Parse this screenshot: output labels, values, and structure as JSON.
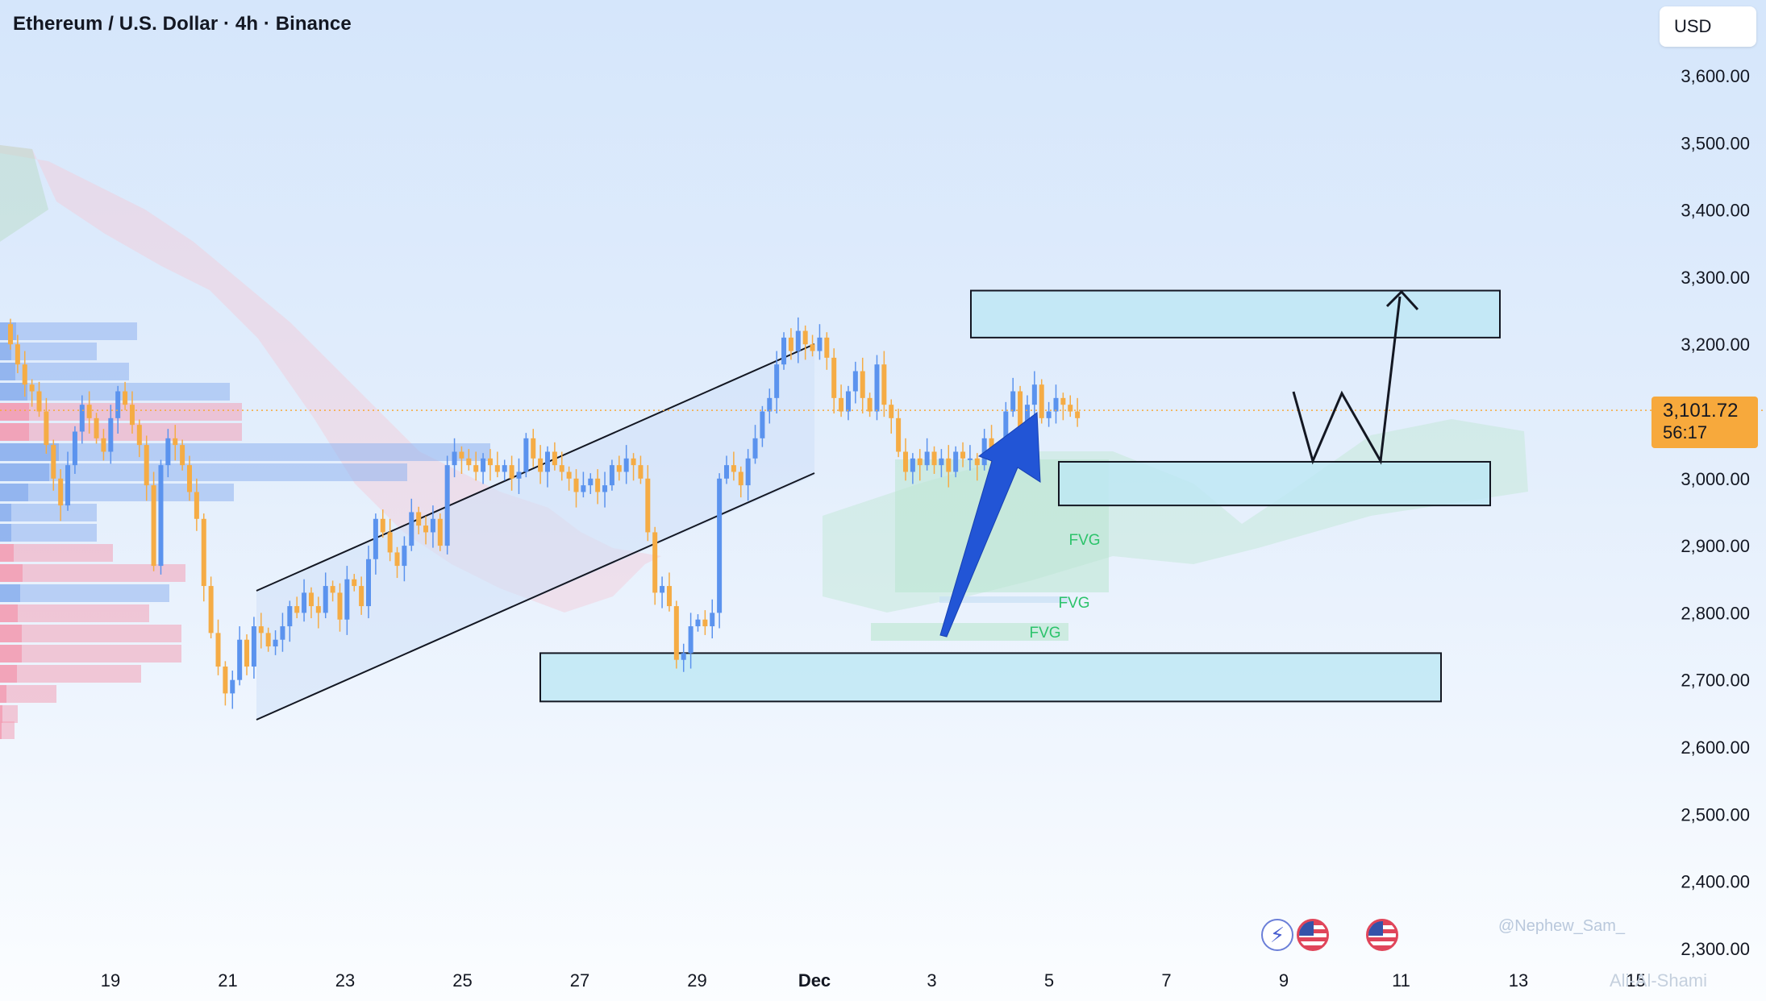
{
  "header": {
    "title": "Ethereum / U.S. Dollar · 4h · Binance",
    "currency": "USD"
  },
  "price_label": {
    "price": "3,101.72",
    "countdown": "56:17"
  },
  "watermark": "@Nephew_Sam_",
  "watermark2": "Ali-Al-Shami",
  "colors": {
    "up": "#5b93ee",
    "down": "#f5ac45",
    "zone": "#bde7f4",
    "arrow": "#2255d6",
    "price_line": "#f7a93c",
    "fvg_text": "#2cc36b"
  },
  "chart_data": {
    "type": "candlestick",
    "x_axis": {
      "tick_labels": [
        "19",
        "21",
        "23",
        "25",
        "27",
        "29",
        "Dec",
        "3",
        "5",
        "7",
        "9",
        "11",
        "13",
        "15"
      ]
    },
    "y_axis": {
      "range": [
        2280,
        3650
      ],
      "tick_values": [
        3600,
        3500,
        3400,
        3300,
        3200,
        3100,
        3000,
        2900,
        2800,
        2700,
        2600,
        2500,
        2400,
        2300
      ],
      "tick_labels": [
        "3,600.00",
        "3,500.00",
        "3,400.00",
        "3,300.00",
        "3,200.00",
        "3,100.00",
        "3,000.00",
        "2,900.00",
        "2,800.00",
        "2,700.00",
        "2,600.00",
        "2,500.00",
        "2,400.00",
        "2,300.00"
      ]
    },
    "last_price": 3101.72,
    "candles_close": [
      3200,
      3170,
      3140,
      3130,
      3100,
      3050,
      3000,
      2960,
      3020,
      3070,
      3110,
      3090,
      3060,
      3040,
      3090,
      3130,
      3110,
      3080,
      3050,
      2990,
      2870,
      3020,
      3060,
      3050,
      3020,
      2980,
      2940,
      2840,
      2770,
      2720,
      2680,
      2700,
      2760,
      2720,
      2780,
      2770,
      2750,
      2760,
      2780,
      2810,
      2800,
      2830,
      2810,
      2800,
      2840,
      2830,
      2790,
      2850,
      2840,
      2810,
      2880,
      2940,
      2920,
      2890,
      2870,
      2900,
      2950,
      2930,
      2920,
      2940,
      2900,
      3020,
      3040,
      3030,
      3020,
      3010,
      3030,
      3020,
      3010,
      3020,
      3000,
      3010,
      3060,
      3030,
      3010,
      3040,
      3020,
      3010,
      3000,
      2980,
      2990,
      3000,
      2980,
      2990,
      3020,
      3010,
      3030,
      3020,
      3000,
      2920,
      2830,
      2840,
      2810,
      2730,
      2740,
      2780,
      2790,
      2780,
      2800,
      3000,
      3020,
      3010,
      2990,
      3030,
      3060,
      3100,
      3120,
      3170,
      3210,
      3190,
      3220,
      3200,
      3190,
      3210,
      3180,
      3120,
      3100,
      3130,
      3160,
      3120,
      3100,
      3170,
      3110,
      3090,
      3040,
      3010,
      3030,
      3020,
      3040,
      3020,
      3030,
      3010,
      3040,
      3030,
      3030,
      3020,
      3060,
      3030,
      3010,
      3100,
      3130,
      3050,
      3110,
      3140,
      3090,
      3100,
      3120,
      3110,
      3100,
      3090
    ],
    "annotations": [
      {
        "type": "zone",
        "from": 3210,
        "to": 3280,
        "x_range": [
          "Dec 3.7",
          "Dec 11.8"
        ]
      },
      {
        "type": "zone",
        "from": 2960,
        "to": 3025,
        "x_range": [
          "Dec 5.2",
          "Dec 12.5"
        ]
      },
      {
        "type": "zone",
        "from": 2668,
        "to": 2740,
        "x_range": [
          "Nov 26.3",
          "Dec 11.3"
        ]
      },
      {
        "type": "text",
        "label": "FVG"
      },
      {
        "type": "text",
        "label": "FVG"
      },
      {
        "type": "text",
        "label": "FVG"
      }
    ]
  }
}
